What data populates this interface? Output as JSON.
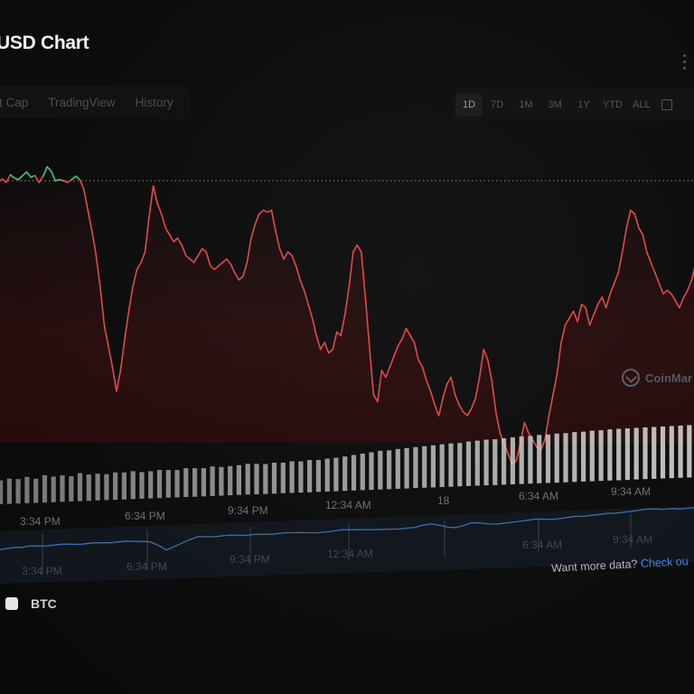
{
  "header": {
    "title": "USD Chart"
  },
  "tabs": [
    {
      "label": "t Cap"
    },
    {
      "label": "TradingView"
    },
    {
      "label": "History"
    }
  ],
  "ranges": [
    {
      "label": "1D",
      "active": true
    },
    {
      "label": "7D"
    },
    {
      "label": "1M"
    },
    {
      "label": "3M"
    },
    {
      "label": "1Y"
    },
    {
      "label": "YTD"
    },
    {
      "label": "ALL"
    }
  ],
  "watermark": {
    "text": "CoinMar"
  },
  "x_axis": {
    "labels": [
      "3:34 PM",
      "6:34 PM",
      "9:34 PM",
      "12:34 AM",
      "18",
      "6:34 AM",
      "9:34 AM"
    ]
  },
  "navigator": {
    "labels": [
      "3:34 PM",
      "6:34 PM",
      "9:34 PM",
      "12:34 AM",
      "6:34 AM",
      "9:34 AM"
    ]
  },
  "footer": {
    "more_text": "Want more data?",
    "more_link": "Check ou"
  },
  "legend": {
    "label": "BTC"
  },
  "colors": {
    "up": "#3ec97a",
    "down": "#e24a4a",
    "volume": "#c9ccc8",
    "navigator": "#3a6fb0",
    "link": "#3a86ff"
  },
  "chart_data": {
    "type": "line",
    "series": [
      {
        "name": "BTC",
        "baseline": 0.55,
        "values": [
          0.5,
          0.6,
          0.5,
          0.72,
          0.62,
          0.58,
          0.7,
          0.8,
          0.65,
          0.7,
          0.5,
          0.68,
          0.95,
          0.82,
          0.55,
          0.58,
          0.55,
          0.5,
          0.58,
          0.68,
          0.58,
          0.3,
          -0.3,
          -0.9,
          -1.6,
          -2.5,
          -3.6,
          -4.2,
          -4.8,
          -5.5,
          -4.9,
          -4.0,
          -3.2,
          -2.5,
          -2.0,
          -1.8,
          -1.5,
          -0.5,
          0.4,
          -0.1,
          -0.4,
          -0.8,
          -1.0,
          -1.2,
          -1.1,
          -1.3,
          -1.6,
          -1.7,
          -1.8,
          -1.6,
          -1.4,
          -1.5,
          -1.9,
          -2.0,
          -1.9,
          -1.8,
          -1.7,
          -1.85,
          -2.1,
          -2.3,
          -2.2,
          -1.8,
          -1.1,
          -0.7,
          -0.4,
          -0.3,
          -0.35,
          -0.3,
          -0.9,
          -1.4,
          -1.7,
          -1.5,
          -1.6,
          -1.9,
          -2.3,
          -2.6,
          -3.0,
          -3.4,
          -3.9,
          -4.3,
          -4.1,
          -4.4,
          -4.3,
          -3.8,
          -3.9,
          -3.3,
          -2.5,
          -1.5,
          -1.3,
          -1.5,
          -2.8,
          -4.2,
          -5.6,
          -5.8,
          -4.9,
          -5.1,
          -4.8,
          -4.5,
          -4.2,
          -4.0,
          -3.7,
          -3.9,
          -4.1,
          -4.6,
          -4.8,
          -5.2,
          -5.5,
          -5.9,
          -6.2,
          -5.7,
          -5.3,
          -5.1,
          -5.6,
          -5.9,
          -6.1,
          -6.2,
          -6.0,
          -5.7,
          -5.1,
          -4.3,
          -4.6,
          -5.2,
          -6.1,
          -6.7,
          -7.0,
          -7.3,
          -7.6,
          -7.5,
          -7.0,
          -6.4,
          -6.7,
          -6.9,
          -7.1,
          -7.2,
          -6.9,
          -6.2,
          -5.6,
          -5.0,
          -4.1,
          -3.6,
          -3.4,
          -3.2,
          -3.5,
          -3.0,
          -3.1,
          -3.6,
          -3.3,
          -3.0,
          -2.8,
          -3.1,
          -2.7,
          -2.4,
          -2.1,
          -1.5,
          -0.8,
          -0.3,
          -0.4,
          -0.8,
          -1.0,
          -1.5,
          -1.8,
          -2.1,
          -2.4,
          -2.7,
          -2.6,
          -2.7,
          -2.9,
          -3.1,
          -2.8,
          -2.6,
          -2.3,
          -1.8
        ]
      }
    ],
    "volume": [
      0.55,
      0.58,
      0.56,
      0.6,
      0.55,
      0.62,
      0.58,
      0.6,
      0.57,
      0.63,
      0.59,
      0.6,
      0.58,
      0.61,
      0.6,
      0.62,
      0.59,
      0.6,
      0.62,
      0.61,
      0.6,
      0.63,
      0.62,
      0.61,
      0.64,
      0.62,
      0.63,
      0.64,
      0.66,
      0.65,
      0.64,
      0.66,
      0.65,
      0.67,
      0.66,
      0.68,
      0.67,
      0.69,
      0.7,
      0.72,
      0.74,
      0.76,
      0.78,
      0.8,
      0.8,
      0.82,
      0.83,
      0.84,
      0.85,
      0.86,
      0.87,
      0.88,
      0.88,
      0.9,
      0.91,
      0.92,
      0.92,
      0.93,
      0.94,
      0.95,
      0.95,
      0.96,
      0.96,
      0.97,
      0.97,
      0.98,
      0.98,
      0.99,
      0.99,
      1.0,
      1.0,
      1.0,
      1.0,
      1.0,
      1.0,
      1.0,
      1.0,
      1.0,
      1.0,
      1.0
    ],
    "navigator_values": [
      0.2,
      0.25,
      0.3,
      0.28,
      0.35,
      0.32,
      0.3,
      0.33,
      0.36,
      0.34,
      0.3,
      0.32,
      0.35,
      0.33,
      0.31,
      0.34,
      0.36,
      0.32,
      0.3,
      0.25,
      0.0,
      -0.3,
      -0.1,
      0.1,
      0.3,
      0.45,
      0.4,
      0.38,
      0.42,
      0.44,
      0.4,
      0.38,
      0.41,
      0.39,
      0.37,
      0.4,
      0.42,
      0.4,
      0.38,
      0.35,
      0.33,
      0.36,
      0.4,
      0.45,
      0.42,
      0.4,
      0.38,
      0.36,
      0.35,
      0.34,
      0.33,
      0.36,
      0.38,
      0.5,
      0.55,
      0.45,
      0.3,
      0.25,
      0.35,
      0.5,
      0.48,
      0.4,
      0.35,
      0.38,
      0.42,
      0.45,
      0.5,
      0.55,
      0.52,
      0.48,
      0.5,
      0.55,
      0.6,
      0.58,
      0.62,
      0.65,
      0.7,
      0.68,
      0.72,
      0.75,
      0.8,
      0.85,
      0.82,
      0.78,
      0.8,
      0.75,
      0.78,
      0.8
    ]
  }
}
